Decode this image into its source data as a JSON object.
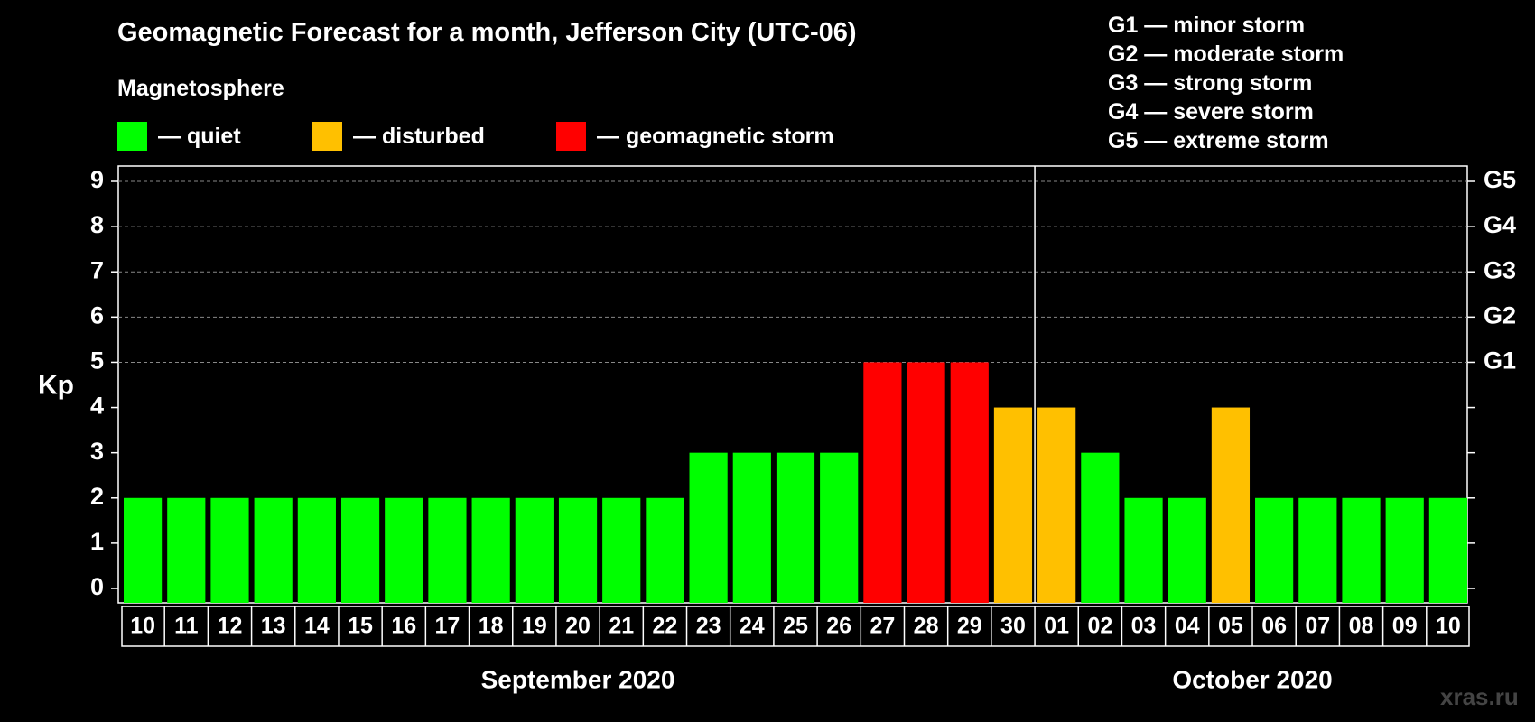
{
  "chart_data": {
    "type": "bar",
    "title": "Geomagnetic Forecast for a month, Jefferson City (UTC-06)",
    "ylabel": "Kp",
    "ylim": [
      0,
      9
    ],
    "yticks": [
      "0",
      "1",
      "2",
      "3",
      "4",
      "5",
      "6",
      "7",
      "8",
      "9"
    ],
    "right_axis": [
      {
        "kp": 5,
        "label": "G1"
      },
      {
        "kp": 6,
        "label": "G2"
      },
      {
        "kp": 7,
        "label": "G3"
      },
      {
        "kp": 8,
        "label": "G4"
      },
      {
        "kp": 9,
        "label": "G5"
      }
    ],
    "categories": [
      "10",
      "11",
      "12",
      "13",
      "14",
      "15",
      "16",
      "17",
      "18",
      "19",
      "20",
      "21",
      "22",
      "23",
      "24",
      "25",
      "26",
      "27",
      "28",
      "29",
      "30",
      "01",
      "02",
      "03",
      "04",
      "05",
      "06",
      "07",
      "08",
      "09",
      "10"
    ],
    "values": [
      2,
      2,
      2,
      2,
      2,
      2,
      2,
      2,
      2,
      2,
      2,
      2,
      2,
      3,
      3,
      3,
      3,
      5,
      5,
      5,
      4,
      4,
      3,
      2,
      2,
      4,
      2,
      2,
      2,
      2,
      2
    ],
    "months": [
      {
        "label": "September 2020",
        "start": 0,
        "end": 20
      },
      {
        "label": "October 2020",
        "start": 21,
        "end": 30
      }
    ],
    "legend_title": "Magnetosphere",
    "legend": [
      {
        "label": "— quiet",
        "color": "#00ff00"
      },
      {
        "label": "— disturbed",
        "color": "#ffc000"
      },
      {
        "label": "— geomagnetic storm",
        "color": "#ff0000"
      }
    ],
    "storm_levels": [
      "G1 — minor storm",
      "G2 — moderate storm",
      "G3 — strong storm",
      "G4 — severe storm",
      "G5 — extreme storm"
    ]
  },
  "watermark": "xras.ru"
}
